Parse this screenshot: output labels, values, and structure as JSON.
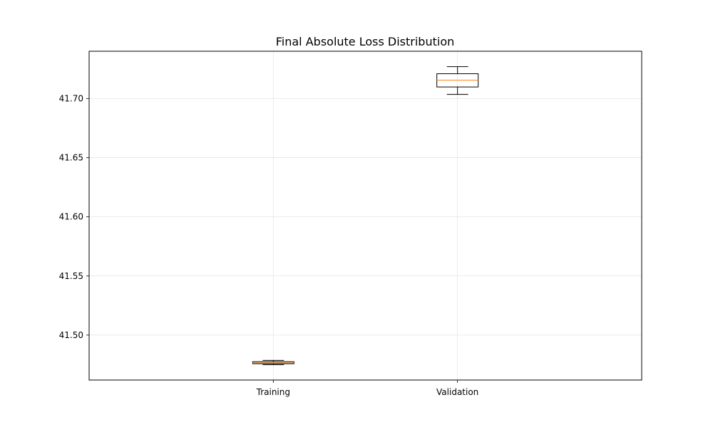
{
  "chart_data": {
    "type": "box",
    "title": "Final Absolute Loss Distribution",
    "xlabel": "",
    "ylabel": "",
    "categories": [
      "Training",
      "Validation"
    ],
    "boxes": [
      {
        "label": "Training",
        "whisker_low": 41.475,
        "q1": 41.4758,
        "median": 41.4765,
        "q3": 41.4775,
        "whisker_high": 41.4786
      },
      {
        "label": "Validation",
        "whisker_low": 41.7035,
        "q1": 41.7098,
        "median": 41.7155,
        "q3": 41.721,
        "whisker_high": 41.727
      }
    ],
    "ylim": [
      41.462,
      41.74
    ],
    "yticks": [
      41.5,
      41.55,
      41.6,
      41.65,
      41.7
    ],
    "ytick_labels": [
      "41.50",
      "41.55",
      "41.60",
      "41.65",
      "41.70"
    ],
    "grid": true,
    "colors": {
      "box_edge": "#000000",
      "median": "#ff7f0e",
      "grid": "#e5e5e5"
    }
  }
}
